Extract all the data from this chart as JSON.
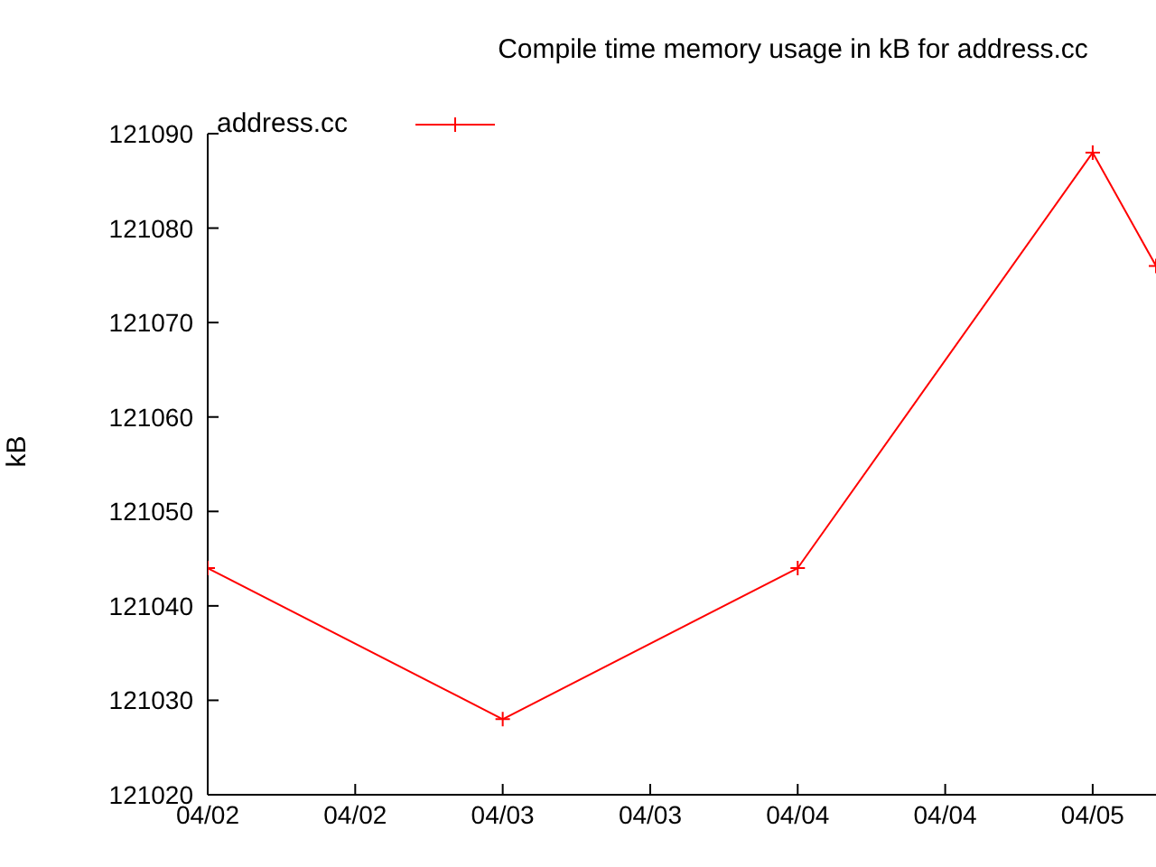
{
  "chart_data": {
    "type": "line",
    "title": "Compile time memory usage in kB for address.cc",
    "ylabel": "kB",
    "x": [
      "--04-02T00:00",
      "--04-03T00:00",
      "--04-04T00:00",
      "--04-05T00:00",
      "--04-05T05:09"
    ],
    "series": [
      {
        "name": "address.cc",
        "color": "#ff0000",
        "values": [
          121044,
          121028,
          121044,
          121088,
          121076
        ]
      }
    ],
    "xlim": [
      "--04-02T00:00",
      "--04-05T05:09"
    ],
    "xticks": [
      {
        "value": "--04-02T00:00",
        "label": "04/02"
      },
      {
        "value": "--04-02T12:00",
        "label": "04/02"
      },
      {
        "value": "--04-03T00:00",
        "label": "04/03"
      },
      {
        "value": "--04-03T12:00",
        "label": "04/03"
      },
      {
        "value": "--04-04T00:00",
        "label": "04/04"
      },
      {
        "value": "--04-04T12:00",
        "label": "04/04"
      },
      {
        "value": "--04-05T00:00",
        "label": "04/05"
      }
    ],
    "ylim": [
      121020,
      121090
    ],
    "yticks": [
      121020,
      121030,
      121040,
      121050,
      121060,
      121070,
      121080,
      121090
    ],
    "legend": "top left",
    "marker": "cross",
    "line_style": "solid",
    "grid": false
  }
}
